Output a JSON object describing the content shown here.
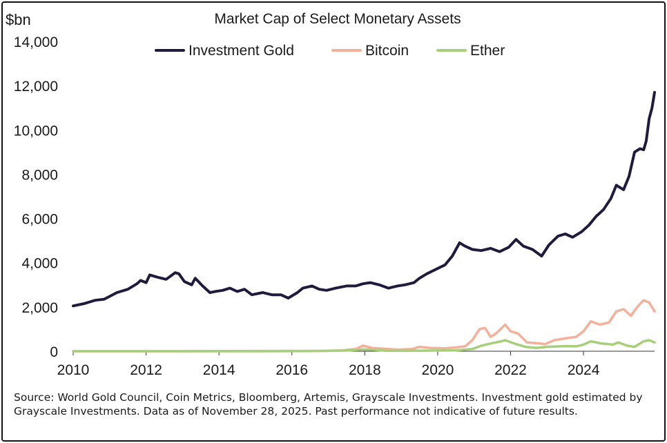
{
  "chart_data": {
    "type": "line",
    "title": "Market Cap of Select Monetary Assets",
    "ylabel": "$bn",
    "xlabel": "",
    "ylim": [
      0,
      14000
    ],
    "xlim": [
      2010.0,
      2025.95
    ],
    "yticks": [
      0,
      2000,
      4000,
      6000,
      8000,
      10000,
      12000,
      14000
    ],
    "ytick_labels": [
      "0",
      "2,000",
      "4,000",
      "6,000",
      "8,000",
      "10,000",
      "12,000",
      "14,000"
    ],
    "xticks": [
      2010,
      2012,
      2014,
      2016,
      2018,
      2020,
      2022,
      2024
    ],
    "xtick_labels": [
      "2010",
      "2012",
      "2014",
      "2016",
      "2018",
      "2020",
      "2022",
      "2024"
    ],
    "grid": false,
    "legend": "top",
    "series": [
      {
        "name": "Investment Gold",
        "color": "#1f1b3d",
        "points": [
          [
            2010.0,
            2050
          ],
          [
            2010.3,
            2150
          ],
          [
            2010.6,
            2300
          ],
          [
            2010.85,
            2350
          ],
          [
            2011.2,
            2650
          ],
          [
            2011.5,
            2800
          ],
          [
            2011.75,
            3050
          ],
          [
            2011.85,
            3200
          ],
          [
            2012.0,
            3100
          ],
          [
            2012.1,
            3450
          ],
          [
            2012.3,
            3350
          ],
          [
            2012.55,
            3250
          ],
          [
            2012.8,
            3550
          ],
          [
            2012.9,
            3500
          ],
          [
            2013.05,
            3150
          ],
          [
            2013.25,
            3000
          ],
          [
            2013.35,
            3300
          ],
          [
            2013.55,
            2950
          ],
          [
            2013.75,
            2650
          ],
          [
            2013.9,
            2700
          ],
          [
            2014.1,
            2750
          ],
          [
            2014.3,
            2850
          ],
          [
            2014.5,
            2700
          ],
          [
            2014.7,
            2800
          ],
          [
            2014.9,
            2550
          ],
          [
            2015.2,
            2650
          ],
          [
            2015.45,
            2550
          ],
          [
            2015.7,
            2550
          ],
          [
            2015.9,
            2400
          ],
          [
            2016.15,
            2650
          ],
          [
            2016.3,
            2850
          ],
          [
            2016.55,
            2950
          ],
          [
            2016.75,
            2800
          ],
          [
            2016.95,
            2750
          ],
          [
            2017.2,
            2850
          ],
          [
            2017.5,
            2950
          ],
          [
            2017.75,
            2950
          ],
          [
            2017.95,
            3050
          ],
          [
            2018.15,
            3100
          ],
          [
            2018.4,
            3000
          ],
          [
            2018.65,
            2850
          ],
          [
            2018.9,
            2950
          ],
          [
            2019.1,
            3000
          ],
          [
            2019.35,
            3100
          ],
          [
            2019.5,
            3300
          ],
          [
            2019.7,
            3500
          ],
          [
            2019.95,
            3700
          ],
          [
            2020.2,
            3900
          ],
          [
            2020.4,
            4300
          ],
          [
            2020.6,
            4900
          ],
          [
            2020.75,
            4750
          ],
          [
            2020.95,
            4600
          ],
          [
            2021.2,
            4550
          ],
          [
            2021.45,
            4650
          ],
          [
            2021.7,
            4500
          ],
          [
            2021.95,
            4700
          ],
          [
            2022.15,
            5050
          ],
          [
            2022.35,
            4750
          ],
          [
            2022.6,
            4600
          ],
          [
            2022.85,
            4300
          ],
          [
            2023.05,
            4800
          ],
          [
            2023.3,
            5200
          ],
          [
            2023.5,
            5300
          ],
          [
            2023.7,
            5150
          ],
          [
            2023.95,
            5400
          ],
          [
            2024.15,
            5700
          ],
          [
            2024.35,
            6100
          ],
          [
            2024.55,
            6400
          ],
          [
            2024.75,
            6900
          ],
          [
            2024.9,
            7500
          ],
          [
            2025.1,
            7300
          ],
          [
            2025.25,
            7900
          ],
          [
            2025.4,
            9000
          ],
          [
            2025.55,
            9150
          ],
          [
            2025.65,
            9100
          ],
          [
            2025.72,
            9500
          ],
          [
            2025.8,
            10500
          ],
          [
            2025.88,
            11000
          ],
          [
            2025.95,
            11700
          ]
        ]
      },
      {
        "name": "Bitcoin",
        "color": "#f5b09a",
        "points": [
          [
            2010.0,
            0
          ],
          [
            2013.0,
            0
          ],
          [
            2013.9,
            10
          ],
          [
            2016.9,
            15
          ],
          [
            2017.4,
            40
          ],
          [
            2017.75,
            100
          ],
          [
            2017.95,
            250
          ],
          [
            2018.2,
            150
          ],
          [
            2018.5,
            120
          ],
          [
            2018.9,
            70
          ],
          [
            2019.3,
            100
          ],
          [
            2019.5,
            200
          ],
          [
            2019.8,
            150
          ],
          [
            2020.2,
            130
          ],
          [
            2020.5,
            170
          ],
          [
            2020.75,
            220
          ],
          [
            2020.95,
            500
          ],
          [
            2021.15,
            1000
          ],
          [
            2021.3,
            1050
          ],
          [
            2021.45,
            650
          ],
          [
            2021.6,
            800
          ],
          [
            2021.85,
            1200
          ],
          [
            2022.0,
            900
          ],
          [
            2022.2,
            800
          ],
          [
            2022.45,
            400
          ],
          [
            2022.8,
            350
          ],
          [
            2022.95,
            320
          ],
          [
            2023.2,
            500
          ],
          [
            2023.5,
            580
          ],
          [
            2023.8,
            650
          ],
          [
            2024.0,
            900
          ],
          [
            2024.2,
            1350
          ],
          [
            2024.45,
            1200
          ],
          [
            2024.7,
            1300
          ],
          [
            2024.9,
            1800
          ],
          [
            2025.1,
            1900
          ],
          [
            2025.3,
            1600
          ],
          [
            2025.5,
            2050
          ],
          [
            2025.65,
            2300
          ],
          [
            2025.8,
            2200
          ],
          [
            2025.95,
            1800
          ]
        ]
      },
      {
        "name": "Ether",
        "color": "#a6cf7a",
        "points": [
          [
            2010.0,
            0
          ],
          [
            2015.5,
            0
          ],
          [
            2016.5,
            5
          ],
          [
            2017.5,
            30
          ],
          [
            2017.95,
            80
          ],
          [
            2018.2,
            70
          ],
          [
            2018.6,
            20
          ],
          [
            2019.5,
            25
          ],
          [
            2020.5,
            40
          ],
          [
            2020.95,
            100
          ],
          [
            2021.2,
            250
          ],
          [
            2021.45,
            350
          ],
          [
            2021.75,
            450
          ],
          [
            2021.85,
            500
          ],
          [
            2022.1,
            350
          ],
          [
            2022.4,
            200
          ],
          [
            2022.7,
            150
          ],
          [
            2023.0,
            200
          ],
          [
            2023.5,
            230
          ],
          [
            2023.8,
            220
          ],
          [
            2024.0,
            300
          ],
          [
            2024.2,
            450
          ],
          [
            2024.5,
            350
          ],
          [
            2024.8,
            300
          ],
          [
            2024.95,
            400
          ],
          [
            2025.2,
            250
          ],
          [
            2025.4,
            200
          ],
          [
            2025.65,
            450
          ],
          [
            2025.8,
            500
          ],
          [
            2025.95,
            400
          ]
        ]
      }
    ]
  },
  "footnote": "Source: World Gold Council, Coin Metrics, Bloomberg, Artemis, Grayscale Investments. Investment gold estimated by Grayscale Investments. Data as of November 28, 2025. Past performance not indicative of future results."
}
